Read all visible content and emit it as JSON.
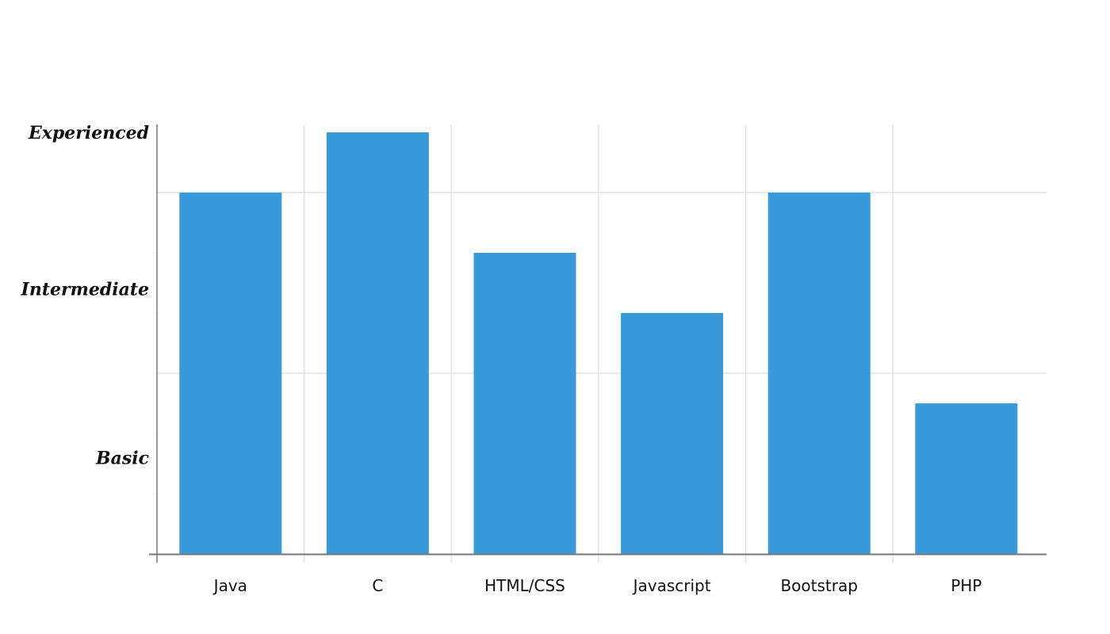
{
  "chart_data": {
    "type": "bar",
    "title": "",
    "xlabel": "",
    "ylabel": "",
    "categories": [
      "Java",
      "C",
      "HTML/CSS",
      "Javascript",
      "Bootstrap",
      "PHP"
    ],
    "values": [
      6,
      7,
      5,
      4,
      6,
      2.5
    ],
    "ylim": [
      0,
      7
    ],
    "y_tick_labels": [
      {
        "value": 1.6,
        "label": "Basic"
      },
      {
        "value": 4.4,
        "label": "Intermediate"
      },
      {
        "value": 7.0,
        "label": "Experienced"
      }
    ],
    "bar_color": "#3899db",
    "grid": true,
    "legend": "none"
  }
}
